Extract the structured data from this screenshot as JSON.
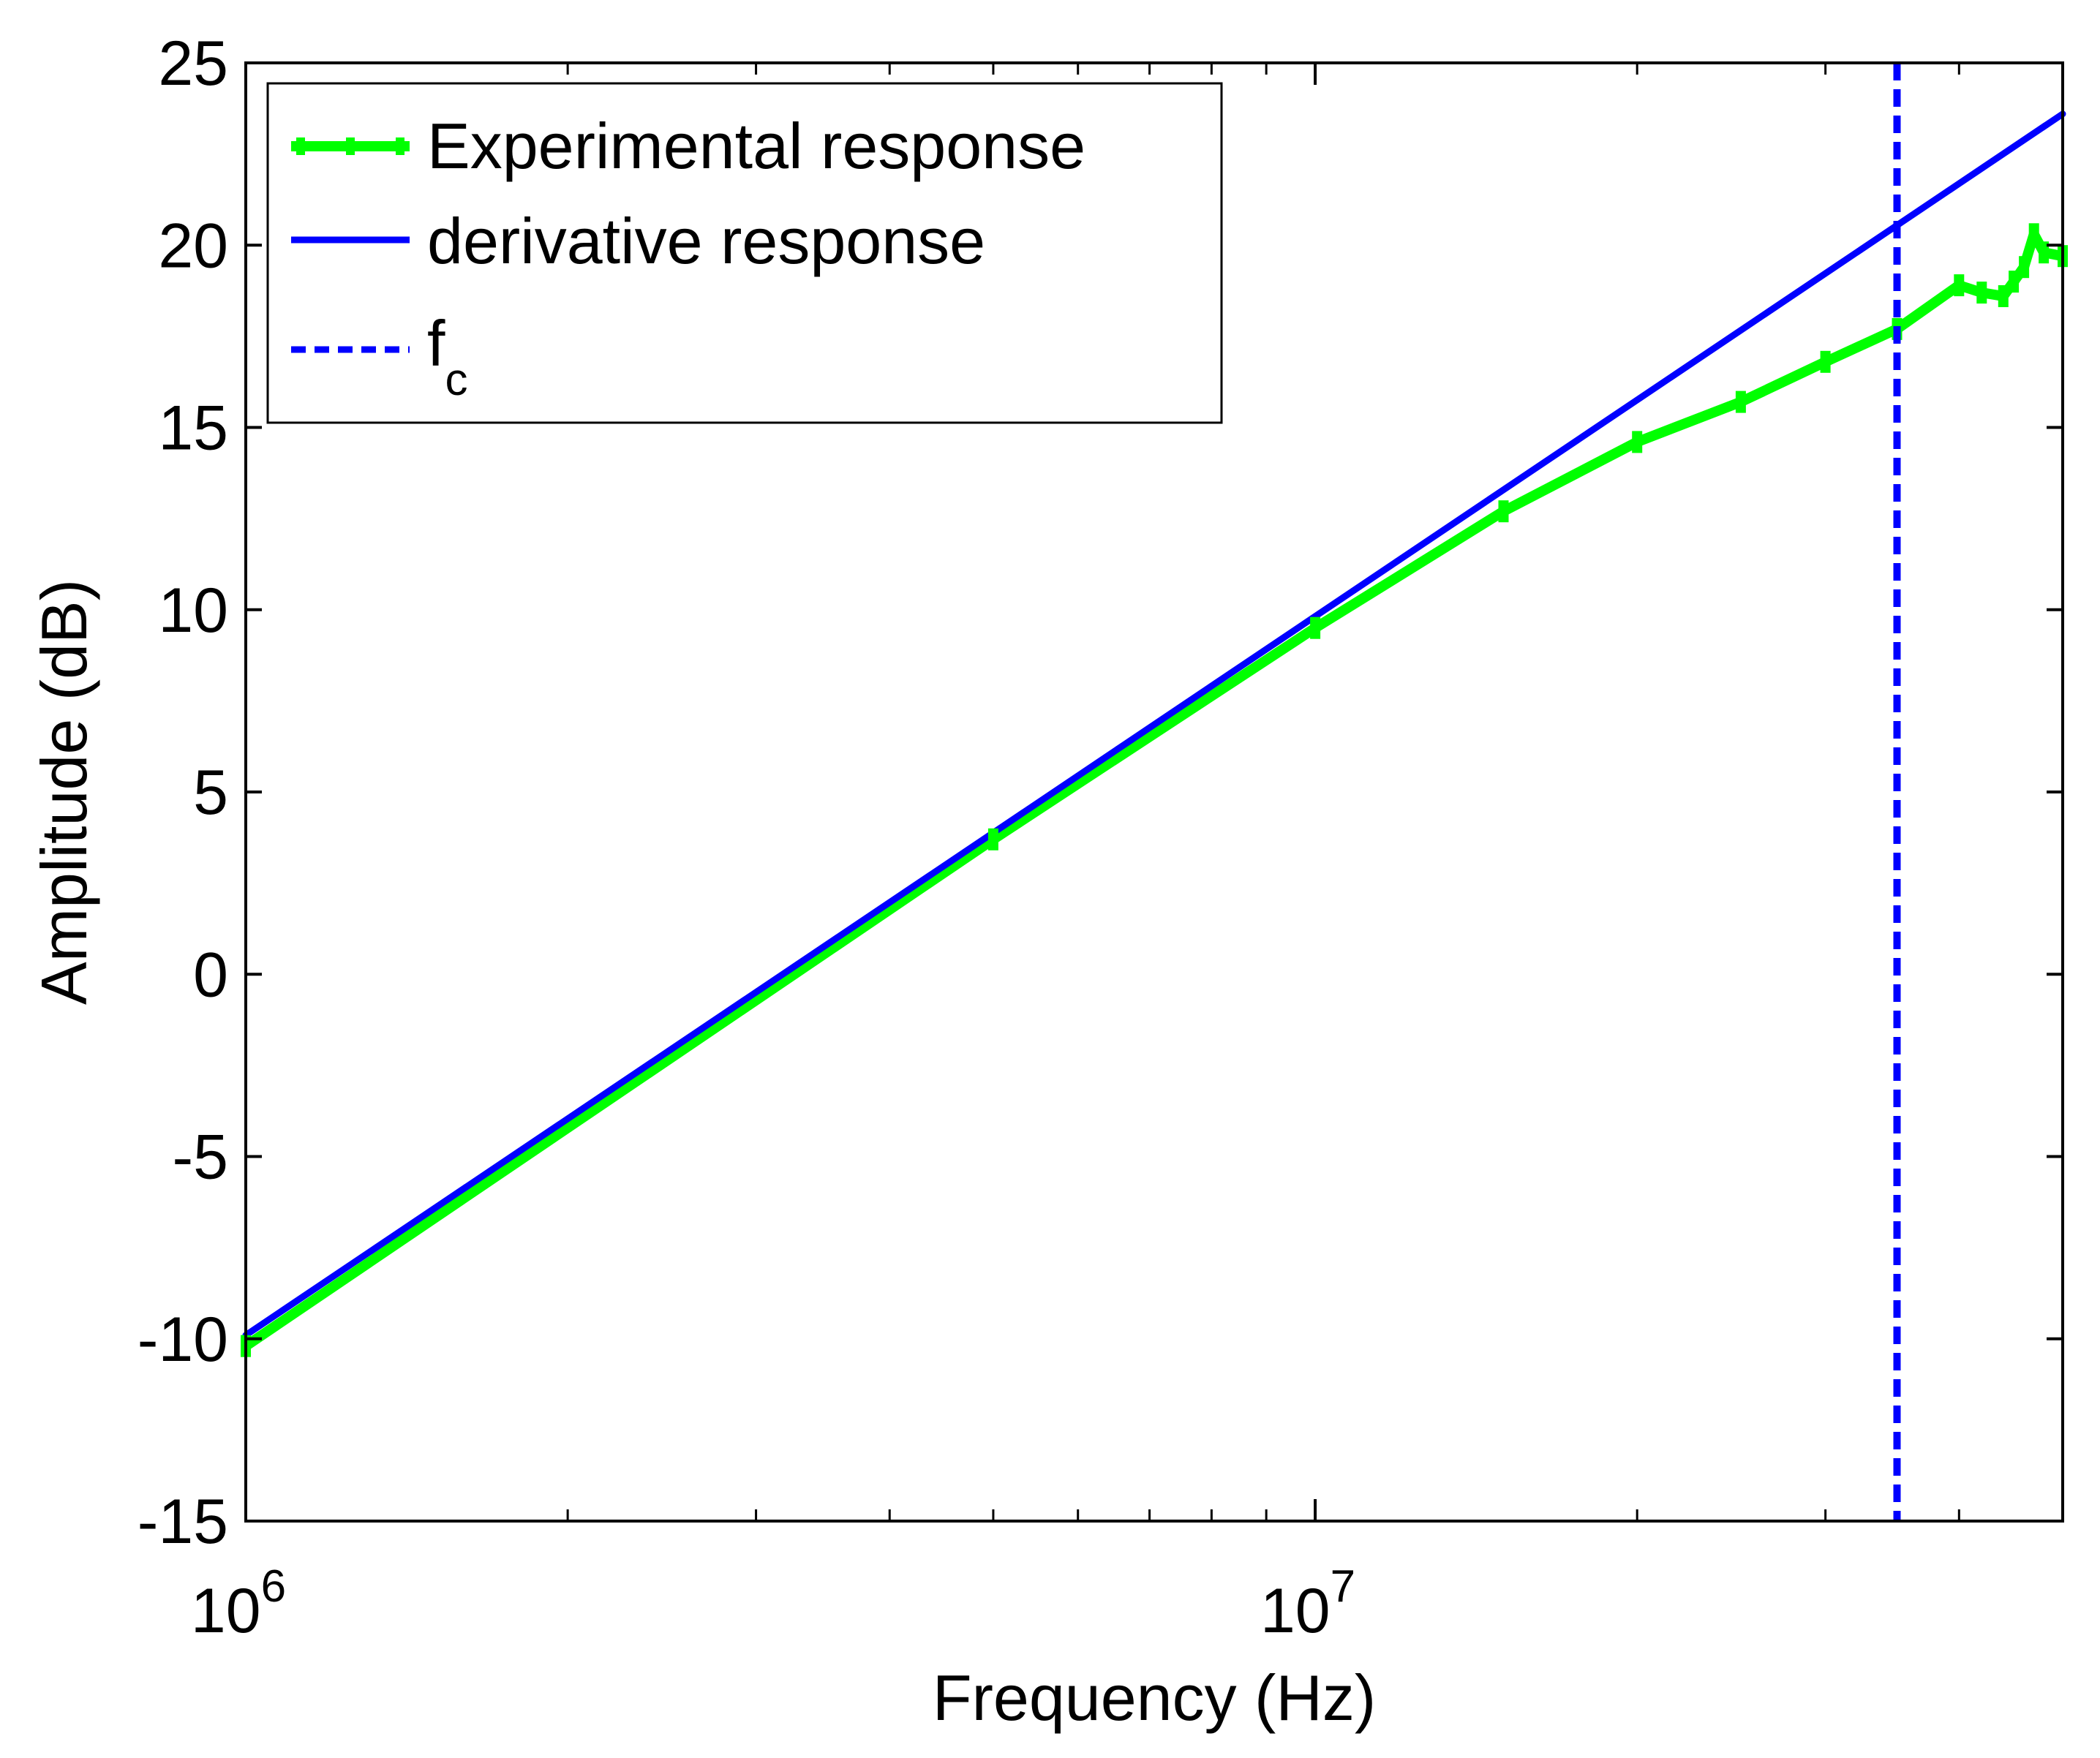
{
  "chart_data": {
    "type": "line",
    "title": "",
    "xlabel": "Frequency (Hz)",
    "ylabel": "Amplitude (dB)",
    "xscale": "log",
    "xlim": [
      1000000,
      50000000
    ],
    "ylim": [
      -15,
      25
    ],
    "x_ticks": [
      {
        "value": 1000000,
        "base": "10",
        "exp": "6"
      },
      {
        "value": 10000000,
        "base": "10",
        "exp": "7"
      }
    ],
    "x_minor_ticks": [
      2000000,
      3000000,
      4000000,
      5000000,
      6000000,
      7000000,
      8000000,
      9000000,
      20000000,
      30000000,
      40000000
    ],
    "y_ticks": [
      {
        "value": -15,
        "label": "-15"
      },
      {
        "value": -10,
        "label": "-10"
      },
      {
        "value": -5,
        "label": "-5"
      },
      {
        "value": 0,
        "label": "0"
      },
      {
        "value": 5,
        "label": "5"
      },
      {
        "value": 10,
        "label": "10"
      },
      {
        "value": 15,
        "label": "15"
      },
      {
        "value": 20,
        "label": "20"
      },
      {
        "value": 25,
        "label": "25"
      }
    ],
    "grid": false,
    "legend_position": "top-left",
    "series": [
      {
        "name": "Experimental response",
        "color": "#00ff00",
        "style": "solid-with-markers",
        "x": [
          1000000,
          5000000,
          10000000,
          15000000,
          20000000,
          25000000,
          30000000,
          35000000,
          40000000,
          42000000,
          44000000,
          45000000,
          46000000,
          47000000,
          48000000,
          50000000
        ],
        "y": [
          -10.2,
          3.7,
          9.5,
          12.7,
          14.6,
          15.7,
          16.8,
          17.7,
          18.9,
          18.7,
          18.6,
          19.0,
          19.4,
          20.3,
          19.8,
          19.7
        ]
      },
      {
        "name": "derivative response",
        "color": "#0000ff",
        "style": "solid",
        "x": [
          1000000,
          50000000
        ],
        "y": [
          -9.9,
          23.6
        ]
      }
    ],
    "vlines": [
      {
        "name": "f",
        "subscript": "c",
        "color": "#0000ff",
        "style": "dashed",
        "x": 35000000
      }
    ]
  }
}
